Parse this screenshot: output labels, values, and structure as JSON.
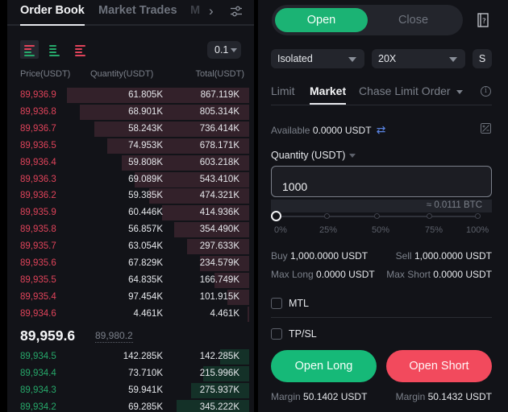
{
  "order_book": {
    "tabs": [
      {
        "label": "Order Book",
        "active": true
      },
      {
        "label": "Market Trades",
        "active": false
      },
      {
        "label": "M",
        "active": false
      }
    ],
    "view_modes": [
      "both-sides",
      "bids-only",
      "asks-only"
    ],
    "precision": "0.1",
    "columns": {
      "price": "Price(USDT)",
      "quantity": "Quantity(USDT)",
      "total": "Total(USDT)"
    },
    "asks": [
      {
        "price": "89,936.9",
        "quantity": "61.805K",
        "total": "867.119K",
        "depth_pct": 100
      },
      {
        "price": "89,936.8",
        "quantity": "68.901K",
        "total": "805.314K",
        "depth_pct": 93
      },
      {
        "price": "89,936.7",
        "quantity": "58.243K",
        "total": "736.414K",
        "depth_pct": 85
      },
      {
        "price": "89,936.5",
        "quantity": "74.953K",
        "total": "678.171K",
        "depth_pct": 78
      },
      {
        "price": "89,936.4",
        "quantity": "59.808K",
        "total": "603.218K",
        "depth_pct": 70
      },
      {
        "price": "89,936.3",
        "quantity": "69.089K",
        "total": "543.410K",
        "depth_pct": 63
      },
      {
        "price": "89,936.2",
        "quantity": "59.385K",
        "total": "474.321K",
        "depth_pct": 55
      },
      {
        "price": "89,935.9",
        "quantity": "60.446K",
        "total": "414.936K",
        "depth_pct": 48
      },
      {
        "price": "89,935.8",
        "quantity": "56.857K",
        "total": "354.490K",
        "depth_pct": 41
      },
      {
        "price": "89,935.7",
        "quantity": "63.054K",
        "total": "297.633K",
        "depth_pct": 34
      },
      {
        "price": "89,935.6",
        "quantity": "67.829K",
        "total": "234.579K",
        "depth_pct": 27
      },
      {
        "price": "89,935.5",
        "quantity": "64.835K",
        "total": "166.749K",
        "depth_pct": 19
      },
      {
        "price": "89,935.4",
        "quantity": "97.454K",
        "total": "101.915K",
        "depth_pct": 12
      },
      {
        "price": "89,934.6",
        "quantity": "4.461K",
        "total": "4.461K",
        "depth_pct": 1
      }
    ],
    "last_price": "89,959.6",
    "mark_price": "89,980.2",
    "bids": [
      {
        "price": "89,934.5",
        "quantity": "142.285K",
        "total": "142.285K",
        "depth_pct": 16
      },
      {
        "price": "89,934.4",
        "quantity": "73.710K",
        "total": "215.996K",
        "depth_pct": 25
      },
      {
        "price": "89,934.3",
        "quantity": "59.941K",
        "total": "275.937K",
        "depth_pct": 32
      },
      {
        "price": "89,934.2",
        "quantity": "69.285K",
        "total": "345.222K",
        "depth_pct": 40
      }
    ]
  },
  "trade_form": {
    "mode": {
      "open": "Open",
      "close": "Close"
    },
    "margin_mode": "Isolated",
    "leverage": "20X",
    "extra_button": "S",
    "order_types": [
      {
        "label": "Limit",
        "active": false
      },
      {
        "label": "Market",
        "active": true
      },
      {
        "label": "Chase Limit Order",
        "active": false
      }
    ],
    "available_label": "Available",
    "available_value": "0.0000 USDT",
    "quantity_label": "Quantity (USDT)",
    "quantity_value": "1000",
    "conversion": "≈ 0.0111 BTC",
    "slider_marks": [
      "0%",
      "25%",
      "50%",
      "75%",
      "100%"
    ],
    "slider_value": 0,
    "buy_label": "Buy",
    "buy_value": "1,000.0000 USDT",
    "sell_label": "Sell",
    "sell_value": "1,000.0000 USDT",
    "max_long_label": "Max Long",
    "max_long_value": "0.0000 USDT",
    "max_short_label": "Max Short",
    "max_short_value": "0.0000 USDT",
    "mtl_label": "MTL",
    "tpsl_label": "TP/SL",
    "open_long": "Open Long",
    "open_short": "Open Short",
    "margin_label": "Margin",
    "long_margin": "50.1402 USDT",
    "short_margin": "50.1432 USDT"
  },
  "colors": {
    "buy_green": "#16b978",
    "sell_red": "#f24a5d",
    "ask_text": "#e0435a",
    "bid_text": "#26a86a",
    "panel_bg": "#121318"
  }
}
